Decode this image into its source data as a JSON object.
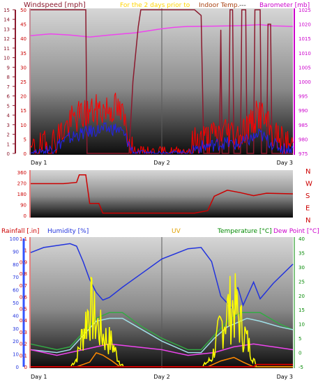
{
  "header": {
    "windspeed_label": "Windspeed [mph]",
    "period_label": "For the 2 days prior to",
    "indoor_temp_label": "Indoor Temp.",
    "dash_label": "---",
    "barometer_label": "Barometer [mb]"
  },
  "colors": {
    "windspeed": "#8b1a2e",
    "barometer": "#cc00cc",
    "wind_red": "#ff0000",
    "wind_blue": "#2222ee",
    "direction": "#cc0000",
    "rainfall": "#cc0000",
    "humidity": "#2233dd",
    "uv": "#e0a000",
    "temperature": "#008800",
    "dew_point": "#cc00cc",
    "uv_yellow": "#ffff00",
    "orange": "#ff8800",
    "light_blue": "#a0e0e8",
    "green": "#33aa44",
    "magenta": "#ee44ee",
    "axis_blue": "#3355ff"
  },
  "chart_data": [
    {
      "type": "line",
      "x_labels": [
        "Day 1",
        "Day 2",
        "Day 3"
      ],
      "left_axis": {
        "label": "Windspeed [mph]",
        "ylim": [
          0,
          15
        ],
        "ticks": [
          0,
          1,
          2,
          3,
          4,
          5,
          6,
          7,
          8,
          9,
          10,
          11,
          12,
          13,
          14,
          15
        ]
      },
      "mid_axis": {
        "ylim": [
          0,
          50
        ],
        "ticks": [
          0,
          5,
          10,
          15,
          20,
          25,
          30,
          35,
          40,
          45,
          50
        ]
      },
      "right_axis": {
        "label": "Barometer [mb]",
        "ylim": [
          975,
          1025
        ],
        "ticks": [
          975,
          980,
          985,
          990,
          995,
          1000,
          1005,
          1010,
          1015,
          1020,
          1025
        ]
      },
      "series": [
        {
          "axis": "right",
          "color": "#ee44ee",
          "points": [
            [
              0,
              1016
            ],
            [
              0.15,
              1016.6
            ],
            [
              0.3,
              1016.2
            ],
            [
              0.45,
              1015.5
            ],
            [
              0.6,
              1016.2
            ],
            [
              0.8,
              1017
            ],
            [
              1.0,
              1018.4
            ],
            [
              1.1,
              1018.9
            ],
            [
              1.2,
              1019.2
            ],
            [
              1.4,
              1019.3
            ],
            [
              1.6,
              1019.5
            ],
            [
              1.75,
              1019.8
            ],
            [
              1.85,
              1019.4
            ],
            [
              2.0,
              1019.2
            ]
          ]
        },
        {
          "axis": "mid",
          "color": "#8b1a2e",
          "points": [
            [
              0,
              50
            ],
            [
              0.42,
              50
            ],
            [
              0.43,
              0
            ],
            [
              0.75,
              0
            ],
            [
              0.78,
              25
            ],
            [
              0.82,
              44
            ],
            [
              0.84,
              50
            ],
            [
              1.25,
              50
            ],
            [
              1.3,
              48
            ],
            [
              1.32,
              0
            ],
            [
              1.44,
              0
            ],
            [
              1.45,
              43
            ],
            [
              1.46,
              0
            ],
            [
              1.51,
              0
            ],
            [
              1.52,
              50
            ],
            [
              1.54,
              50
            ],
            [
              1.55,
              0
            ],
            [
              1.6,
              0
            ],
            [
              1.61,
              50
            ],
            [
              1.64,
              50
            ],
            [
              1.65,
              0
            ],
            [
              1.7,
              0
            ],
            [
              1.71,
              50
            ],
            [
              1.75,
              50
            ],
            [
              1.76,
              0
            ],
            [
              1.8,
              0
            ],
            [
              1.81,
              45
            ],
            [
              1.83,
              45
            ],
            [
              1.84,
              0
            ],
            [
              2.0,
              0
            ]
          ]
        },
        {
          "axis": "left",
          "color": "#ff0000",
          "kind": "noise",
          "points": [
            [
              0,
              0.3
            ],
            [
              0.15,
              0.8
            ],
            [
              0.25,
              2.5
            ],
            [
              0.35,
              3.8
            ],
            [
              0.45,
              4.3
            ],
            [
              0.55,
              4.6
            ],
            [
              0.65,
              4.8
            ],
            [
              0.7,
              3.9
            ],
            [
              0.75,
              1.8
            ],
            [
              0.78,
              0.2
            ],
            [
              1.2,
              0.2
            ],
            [
              1.26,
              1.4
            ],
            [
              1.36,
              1.6
            ],
            [
              1.48,
              2.4
            ],
            [
              1.58,
              2.0
            ],
            [
              1.68,
              3.1
            ],
            [
              1.75,
              4.3
            ],
            [
              1.82,
              2.5
            ],
            [
              1.92,
              1.1
            ],
            [
              2.0,
              0.9
            ]
          ]
        },
        {
          "axis": "left",
          "color": "#2222ee",
          "kind": "noise",
          "points": [
            [
              0,
              0.1
            ],
            [
              0.15,
              0.4
            ],
            [
              0.25,
              1.3
            ],
            [
              0.35,
              1.9
            ],
            [
              0.45,
              2.3
            ],
            [
              0.55,
              2.5
            ],
            [
              0.65,
              2.6
            ],
            [
              0.7,
              2.2
            ],
            [
              0.75,
              1.0
            ],
            [
              0.78,
              0.1
            ],
            [
              1.2,
              0.1
            ],
            [
              1.26,
              0.6
            ],
            [
              1.36,
              0.8
            ],
            [
              1.48,
              1.1
            ],
            [
              1.58,
              0.9
            ],
            [
              1.68,
              1.5
            ],
            [
              1.75,
              2.0
            ],
            [
              1.82,
              1.2
            ],
            [
              1.92,
              0.5
            ],
            [
              2.0,
              0.4
            ]
          ]
        }
      ]
    },
    {
      "type": "line",
      "right_axis": {
        "labels": [
          "N",
          "W",
          "S",
          "E",
          "N"
        ]
      },
      "left_axis": {
        "ylim": [
          0,
          360
        ],
        "ticks": [
          0,
          90,
          180,
          270,
          360
        ]
      },
      "series": [
        {
          "color": "#cc0000",
          "points": [
            [
              0,
              265
            ],
            [
              0.25,
              265
            ],
            [
              0.35,
              275
            ],
            [
              0.37,
              338
            ],
            [
              0.42,
              338
            ],
            [
              0.45,
              100
            ],
            [
              0.52,
              100
            ],
            [
              0.55,
              20
            ],
            [
              1.25,
              20
            ],
            [
              1.35,
              40
            ],
            [
              1.4,
              160
            ],
            [
              1.5,
              210
            ],
            [
              1.6,
              190
            ],
            [
              1.7,
              165
            ],
            [
              1.8,
              185
            ],
            [
              2.0,
              180
            ]
          ]
        }
      ]
    },
    {
      "type": "line",
      "x_labels": [
        "Day 1",
        "Day 2",
        "Day 3"
      ],
      "legend_labels": {
        "rainfall": "Rainfall [.in]",
        "humidity": "Humidity [%]",
        "uv": "UV",
        "temperature": "Temperature [°C]",
        "dew_point": "Dew Point [°C]"
      },
      "humidity_axis": {
        "label": "Humidity [%]",
        "ylim": [
          0,
          100
        ],
        "ticks": [
          0,
          10,
          20,
          30,
          40,
          50,
          60,
          70,
          80,
          90,
          100
        ]
      },
      "rainfall_axis": {
        "label": "Rainfall [.in]",
        "ylim": [
          0,
          1.1
        ],
        "ticks": [
          0,
          0.1,
          0.2,
          0.3,
          0.4,
          0.5,
          0.6,
          0.7,
          0.8,
          0.9,
          1,
          1.1
        ]
      },
      "temperature_axis": {
        "label": "Temperature [°C]",
        "ylim": [
          -5,
          40
        ],
        "ticks": [
          -5,
          0,
          5,
          10,
          15,
          20,
          25,
          30,
          35,
          40
        ]
      },
      "series": [
        {
          "key": "humidity",
          "axis": "humidity",
          "color": "#2233dd",
          "points": [
            [
              0,
              89
            ],
            [
              0.1,
              93
            ],
            [
              0.3,
              96
            ],
            [
              0.35,
              94
            ],
            [
              0.4,
              82
            ],
            [
              0.45,
              68
            ],
            [
              0.5,
              58
            ],
            [
              0.55,
              52
            ],
            [
              0.6,
              54
            ],
            [
              0.7,
              62
            ],
            [
              0.85,
              73
            ],
            [
              1.0,
              84
            ],
            [
              1.2,
              92
            ],
            [
              1.3,
              93
            ],
            [
              1.38,
              82
            ],
            [
              1.45,
              55
            ],
            [
              1.55,
              44
            ],
            [
              1.58,
              62
            ],
            [
              1.62,
              48
            ],
            [
              1.7,
              66
            ],
            [
              1.75,
              53
            ],
            [
              1.85,
              65
            ],
            [
              2.0,
              80
            ]
          ]
        },
        {
          "key": "temperature",
          "axis": "temperature",
          "color": "#33aa44",
          "points": [
            [
              0,
              3
            ],
            [
              0.2,
              1
            ],
            [
              0.3,
              2
            ],
            [
              0.4,
              7
            ],
            [
              0.5,
              12
            ],
            [
              0.6,
              14
            ],
            [
              0.7,
              14
            ],
            [
              0.85,
              9
            ],
            [
              1.0,
              5
            ],
            [
              1.2,
              1
            ],
            [
              1.3,
              1
            ],
            [
              1.4,
              6
            ],
            [
              1.5,
              11
            ],
            [
              1.6,
              14
            ],
            [
              1.75,
              14
            ],
            [
              1.9,
              10
            ],
            [
              2.0,
              8
            ]
          ]
        },
        {
          "key": "indoor",
          "axis": "temperature",
          "color": "#a0e0e8",
          "points": [
            [
              0,
              1
            ],
            [
              0.2,
              0
            ],
            [
              0.3,
              1
            ],
            [
              0.4,
              6
            ],
            [
              0.5,
              11
            ],
            [
              0.6,
              12
            ],
            [
              0.7,
              12
            ],
            [
              0.85,
              8
            ],
            [
              1.0,
              4
            ],
            [
              1.2,
              0
            ],
            [
              1.3,
              0
            ],
            [
              1.4,
              5
            ],
            [
              1.5,
              9
            ],
            [
              1.65,
              12
            ],
            [
              1.75,
              11
            ],
            [
              1.9,
              9
            ],
            [
              2.0,
              8
            ]
          ]
        },
        {
          "key": "dew_point",
          "axis": "temperature",
          "color": "#ee44ee",
          "points": [
            [
              0,
              1
            ],
            [
              0.2,
              -1
            ],
            [
              0.4,
              1
            ],
            [
              0.5,
              2
            ],
            [
              0.6,
              3
            ],
            [
              0.8,
              2
            ],
            [
              1.0,
              1
            ],
            [
              1.2,
              -1
            ],
            [
              1.4,
              0
            ],
            [
              1.55,
              2
            ],
            [
              1.7,
              3
            ],
            [
              1.85,
              2
            ],
            [
              2.0,
              1
            ]
          ]
        },
        {
          "key": "uv",
          "axis": "rainfall",
          "color": "#ffff00",
          "kind": "spiky",
          "points": [
            [
              0,
              0
            ],
            [
              0.3,
              0
            ],
            [
              0.35,
              0.1
            ],
            [
              0.45,
              0.78
            ],
            [
              0.5,
              0.55
            ],
            [
              0.55,
              0.4
            ],
            [
              0.62,
              0.3
            ],
            [
              0.68,
              0.05
            ],
            [
              0.72,
              0
            ],
            [
              1.3,
              0
            ],
            [
              1.38,
              0.1
            ],
            [
              1.45,
              0.5
            ],
            [
              1.5,
              0.7
            ],
            [
              1.55,
              0.78
            ],
            [
              1.6,
              0.55
            ],
            [
              1.68,
              0.2
            ],
            [
              1.72,
              0
            ],
            [
              2.0,
              0
            ]
          ]
        },
        {
          "key": "uv_orange",
          "axis": "rainfall",
          "color": "#ff8800",
          "points": [
            [
              0,
              0
            ],
            [
              0.35,
              0
            ],
            [
              0.45,
              0.04
            ],
            [
              0.5,
              0.12
            ],
            [
              0.55,
              0.1
            ],
            [
              0.62,
              0.05
            ],
            [
              0.68,
              0
            ],
            [
              1.35,
              0
            ],
            [
              1.45,
              0.05
            ],
            [
              1.55,
              0.08
            ],
            [
              1.62,
              0.04
            ],
            [
              1.7,
              0
            ],
            [
              2.0,
              0
            ]
          ]
        },
        {
          "key": "rainfall",
          "axis": "rainfall",
          "color": "#cc0000",
          "points": [
            [
              0,
              0
            ],
            [
              1.7,
              0
            ],
            [
              1.72,
              0.02
            ],
            [
              2.0,
              0.02
            ]
          ]
        }
      ]
    }
  ]
}
